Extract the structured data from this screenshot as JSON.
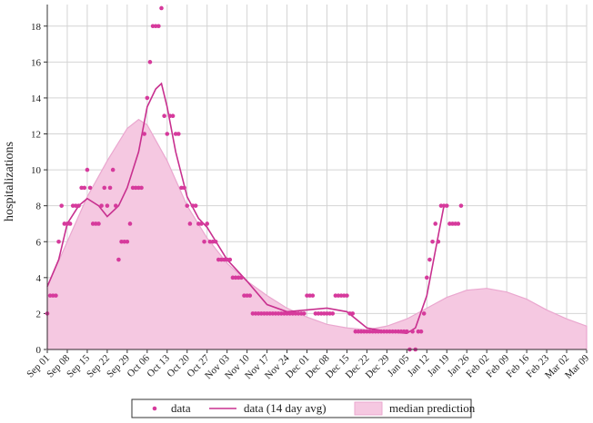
{
  "chart_data": {
    "type": "mixed",
    "ylabel": "hospitalizations",
    "xlim": [
      "09-01",
      "03-09"
    ],
    "ylim": [
      0,
      19.2
    ],
    "yticks": [
      0,
      2,
      4,
      6,
      8,
      10,
      12,
      14,
      16,
      18
    ],
    "xticks": [
      {
        "value": "09-01",
        "label": "Sep 01"
      },
      {
        "value": "09-08",
        "label": "Sep 08"
      },
      {
        "value": "09-15",
        "label": "Sep 15"
      },
      {
        "value": "09-22",
        "label": "Sep 22"
      },
      {
        "value": "09-29",
        "label": "Sep 29"
      },
      {
        "value": "10-06",
        "label": "Oct 06"
      },
      {
        "value": "10-13",
        "label": "Oct 13"
      },
      {
        "value": "10-20",
        "label": "Oct 20"
      },
      {
        "value": "10-27",
        "label": "Oct 27"
      },
      {
        "value": "11-03",
        "label": "Nov 03"
      },
      {
        "value": "11-10",
        "label": "Nov 10"
      },
      {
        "value": "11-17",
        "label": "Nov 17"
      },
      {
        "value": "11-24",
        "label": "Nov 24"
      },
      {
        "value": "12-01",
        "label": "Dec 01"
      },
      {
        "value": "12-08",
        "label": "Dec 08"
      },
      {
        "value": "12-15",
        "label": "Dec 15"
      },
      {
        "value": "12-22",
        "label": "Dec 22"
      },
      {
        "value": "12-29",
        "label": "Dec 29"
      },
      {
        "value": "01-05",
        "label": "Jan 05"
      },
      {
        "value": "01-12",
        "label": "Jan 12"
      },
      {
        "value": "01-19",
        "label": "Jan 19"
      },
      {
        "value": "01-26",
        "label": "Jan 26"
      },
      {
        "value": "02-02",
        "label": "Feb 02"
      },
      {
        "value": "02-09",
        "label": "Feb 09"
      },
      {
        "value": "02-16",
        "label": "Feb 16"
      },
      {
        "value": "02-23",
        "label": "Feb 23"
      },
      {
        "value": "03-02",
        "label": "Mar 02"
      },
      {
        "value": "03-09",
        "label": "Mar 09"
      }
    ],
    "grid": true,
    "legend": "bottom",
    "series": [
      {
        "name": "median prediction",
        "kind": "area",
        "color": "#f5c8e1",
        "stroke": "#eaa7cf",
        "x": [
          "09-01",
          "09-08",
          "09-15",
          "09-22",
          "09-29",
          "10-03",
          "10-06",
          "10-13",
          "10-20",
          "10-27",
          "11-03",
          "11-10",
          "11-17",
          "11-24",
          "12-01",
          "12-08",
          "12-15",
          "12-22",
          "12-29",
          "01-05",
          "01-12",
          "01-19",
          "01-26",
          "02-02",
          "02-09",
          "02-16",
          "02-23",
          "03-02",
          "03-09"
        ],
        "values": [
          3.5,
          6,
          8.5,
          10.5,
          12.3,
          12.8,
          12.5,
          10.5,
          8,
          6.2,
          4.8,
          3.8,
          3,
          2.3,
          1.8,
          1.4,
          1.2,
          1.1,
          1.3,
          1.7,
          2.3,
          2.9,
          3.3,
          3.4,
          3.2,
          2.8,
          2.2,
          1.7,
          1.3
        ]
      },
      {
        "name": "data (14 day avg)",
        "kind": "line",
        "color": "#c8308f",
        "x": [
          "09-01",
          "09-05",
          "09-08",
          "09-12",
          "09-15",
          "09-19",
          "09-22",
          "09-26",
          "09-29",
          "10-03",
          "10-06",
          "10-09",
          "10-11",
          "10-13",
          "10-16",
          "10-20",
          "10-24",
          "10-27",
          "11-03",
          "11-10",
          "11-17",
          "11-24",
          "12-01",
          "12-08",
          "12-15",
          "12-22",
          "12-29",
          "01-05",
          "01-08",
          "01-12",
          "01-15",
          "01-18"
        ],
        "values": [
          3.5,
          5,
          7,
          8,
          8.4,
          8,
          7.4,
          8,
          9,
          11,
          13.5,
          14.5,
          14.8,
          13.5,
          11,
          8.5,
          7.3,
          6.8,
          5,
          3.8,
          2.5,
          2.1,
          2.2,
          2.3,
          2.1,
          1.2,
          1,
          0.9,
          1.2,
          3,
          5.5,
          8
        ]
      },
      {
        "name": "data",
        "kind": "scatter",
        "color": "#d63a9c",
        "x": [
          "09-01",
          "09-02",
          "09-03",
          "09-04",
          "09-05",
          "09-06",
          "09-07",
          "09-08",
          "09-09",
          "09-10",
          "09-11",
          "09-12",
          "09-13",
          "09-14",
          "09-15",
          "09-16",
          "09-17",
          "09-18",
          "09-19",
          "09-20",
          "09-21",
          "09-22",
          "09-23",
          "09-24",
          "09-25",
          "09-26",
          "09-27",
          "09-28",
          "09-29",
          "09-30",
          "10-01",
          "10-02",
          "10-03",
          "10-04",
          "10-05",
          "10-06",
          "10-07",
          "10-08",
          "10-09",
          "10-10",
          "10-11",
          "10-12",
          "10-13",
          "10-14",
          "10-15",
          "10-16",
          "10-17",
          "10-18",
          "10-19",
          "10-20",
          "10-21",
          "10-22",
          "10-23",
          "10-24",
          "10-25",
          "10-26",
          "10-27",
          "10-28",
          "10-29",
          "10-30",
          "10-31",
          "11-01",
          "11-02",
          "11-03",
          "11-04",
          "11-05",
          "11-06",
          "11-07",
          "11-08",
          "11-09",
          "11-10",
          "11-11",
          "11-12",
          "11-13",
          "11-14",
          "11-15",
          "11-16",
          "11-17",
          "11-18",
          "11-19",
          "11-20",
          "11-21",
          "11-22",
          "11-23",
          "11-24",
          "11-25",
          "11-26",
          "11-27",
          "11-28",
          "11-29",
          "11-30",
          "12-01",
          "12-02",
          "12-03",
          "12-04",
          "12-05",
          "12-06",
          "12-07",
          "12-08",
          "12-09",
          "12-10",
          "12-11",
          "12-12",
          "12-13",
          "12-14",
          "12-15",
          "12-16",
          "12-17",
          "12-18",
          "12-19",
          "12-20",
          "12-21",
          "12-22",
          "12-23",
          "12-24",
          "12-25",
          "12-26",
          "12-27",
          "12-28",
          "12-29",
          "12-30",
          "12-31",
          "01-01",
          "01-02",
          "01-03",
          "01-04",
          "01-05",
          "01-06",
          "01-07",
          "01-08",
          "01-09",
          "01-10",
          "01-11",
          "01-12",
          "01-13",
          "01-14",
          "01-15",
          "01-16",
          "01-17",
          "01-18",
          "01-19",
          "01-20",
          "01-21",
          "01-22",
          "01-23",
          "01-24"
        ],
        "values": [
          2,
          3,
          3,
          3,
          6,
          8,
          7,
          7,
          7,
          8,
          8,
          8,
          9,
          9,
          10,
          9,
          7,
          7,
          7,
          8,
          9,
          8,
          9,
          10,
          8,
          5,
          6,
          6,
          6,
          7,
          9,
          9,
          9,
          9,
          12,
          14,
          16,
          18,
          18,
          18,
          19,
          13,
          12,
          13,
          13,
          12,
          12,
          9,
          9,
          8,
          7,
          8,
          8,
          7,
          7,
          6,
          7,
          6,
          6,
          6,
          5,
          5,
          5,
          5,
          5,
          4,
          4,
          4,
          4,
          3,
          3,
          3,
          2,
          2,
          2,
          2,
          2,
          2,
          2,
          2,
          2,
          2,
          2,
          2,
          2,
          2,
          2,
          2,
          2,
          2,
          2,
          3,
          3,
          3,
          2,
          2,
          2,
          2,
          2,
          2,
          2,
          3,
          3,
          3,
          3,
          3,
          2,
          2,
          1,
          1,
          1,
          1,
          1,
          1,
          1,
          1,
          1,
          1,
          1,
          1,
          1,
          1,
          1,
          1,
          1,
          1,
          1,
          0,
          1,
          0,
          1,
          1,
          2,
          4,
          5,
          6,
          7,
          6,
          8,
          8,
          8,
          7,
          7,
          7,
          7,
          8
        ]
      }
    ]
  }
}
